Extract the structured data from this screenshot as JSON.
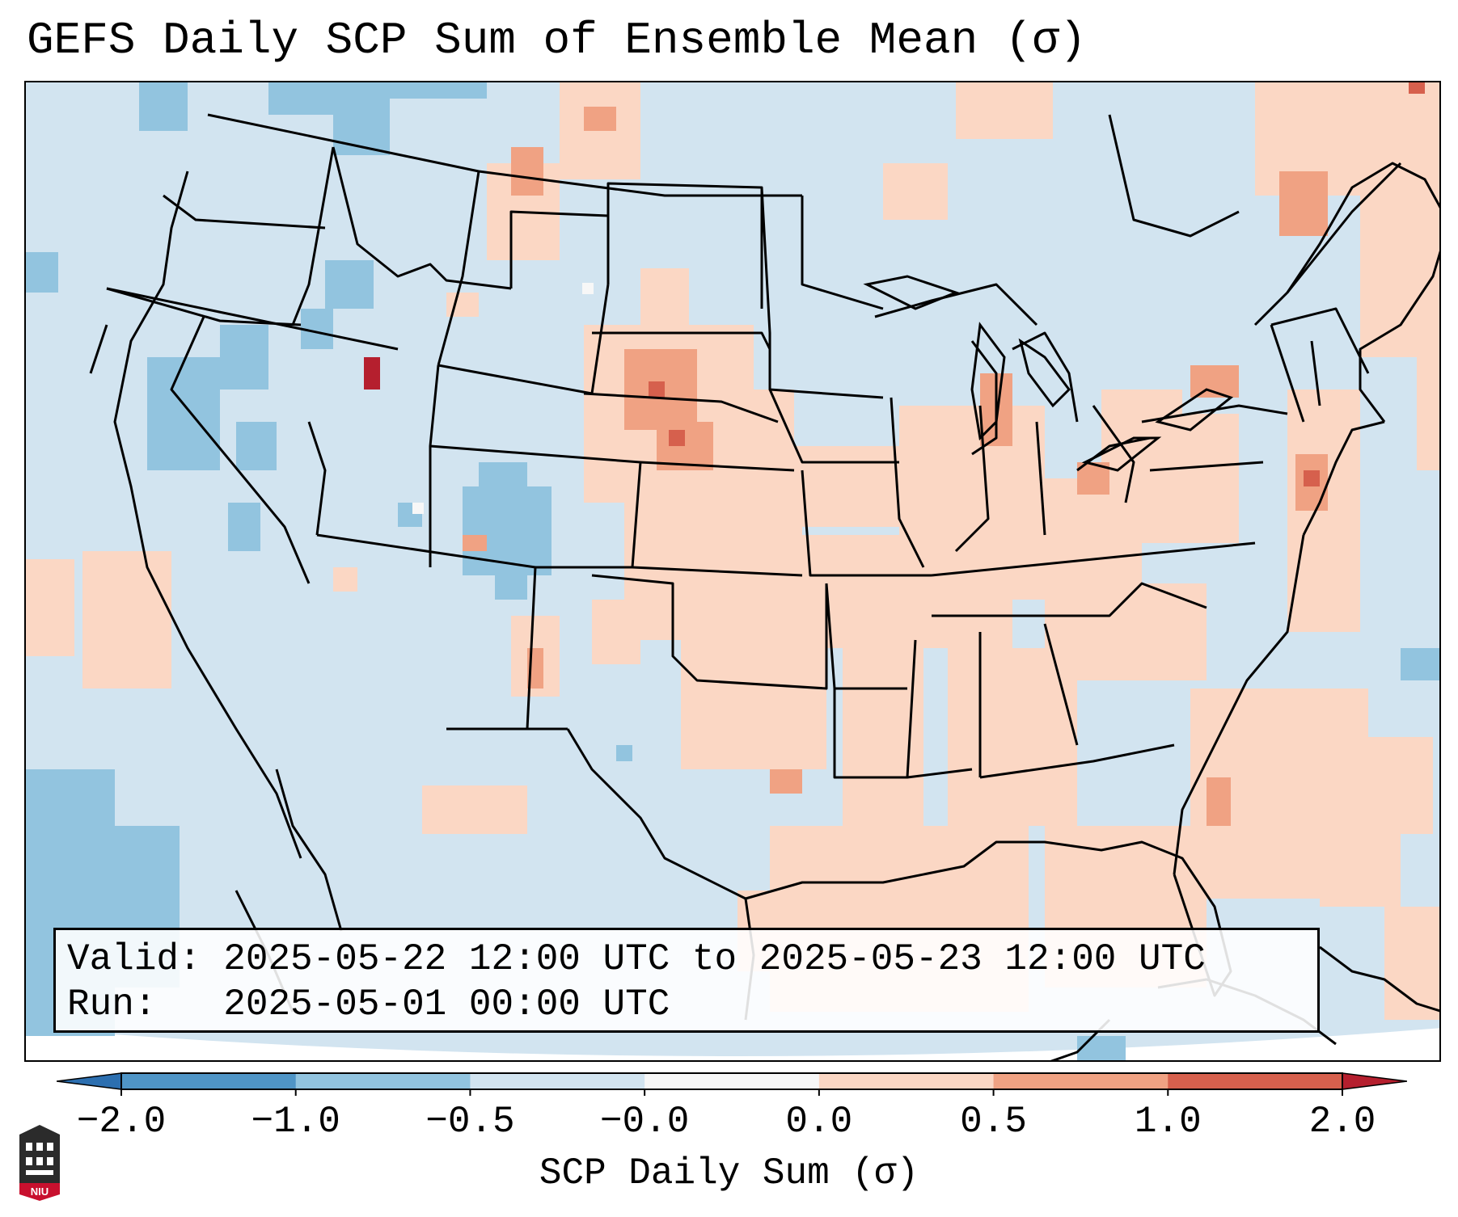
{
  "title": "GEFS Daily SCP Sum of Ensemble Mean (σ)",
  "info": {
    "valid_line": "Valid: 2025-05-22 12:00 UTC to 2025-05-23 12:00 UTC",
    "run_line": "Run:   2025-05-01 00:00 UTC"
  },
  "colorbar": {
    "label": "SCP Daily Sum (σ)",
    "ticks": [
      "−2.0",
      "−1.0",
      "−0.5",
      "−0.0",
      "0.0",
      "0.5",
      "1.0",
      "2.0"
    ],
    "colors": [
      "#4f95c6",
      "#92c4df",
      "#d2e4f0",
      "#f7f7f7",
      "#fbd7c4",
      "#f0a283",
      "#d6604d"
    ],
    "under_color": "#2c6fb0",
    "over_color": "#b51f2e"
  },
  "map": {
    "region": "Continental United States",
    "background_color": "#d2e4f0",
    "positive_color": "#fbd7c4",
    "moderate_positive_color": "#f0a283",
    "strong_positive_color": "#d6604d",
    "extreme_positive_color": "#b51f2e",
    "negative_color": "#92c4df"
  },
  "logo": {
    "text": "NIU",
    "name": "niu-logo"
  }
}
